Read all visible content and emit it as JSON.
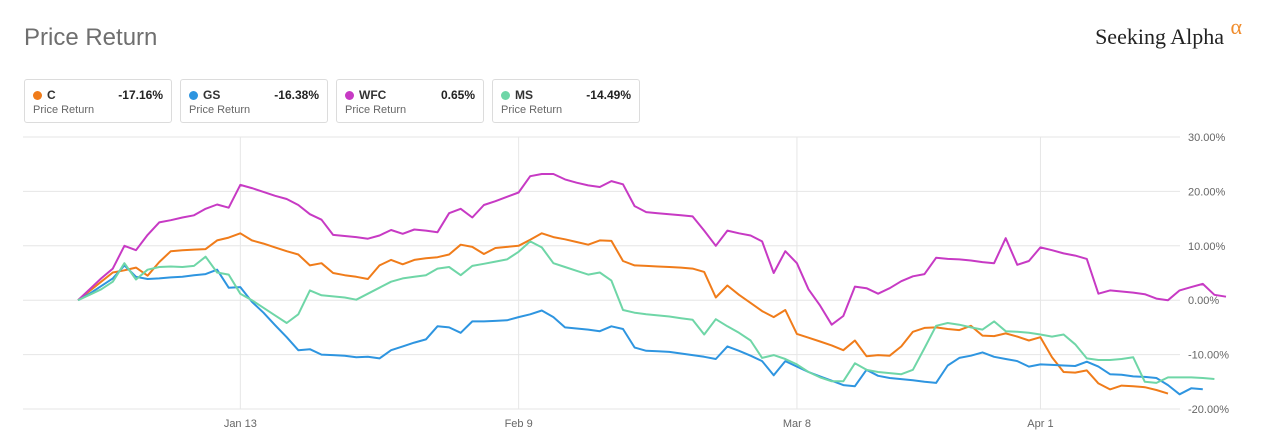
{
  "header": {
    "title": "Price Return",
    "brand": "Seeking Alpha",
    "brand_mark": "α"
  },
  "legend": [
    {
      "ticker": "C",
      "value": "-17.16%",
      "metric": "Price Return",
      "color": "#f07c1a"
    },
    {
      "ticker": "GS",
      "value": "-16.38%",
      "metric": "Price Return",
      "color": "#2e95e0"
    },
    {
      "ticker": "WFC",
      "value": "0.65%",
      "metric": "Price Return",
      "color": "#c73ac4"
    },
    {
      "ticker": "MS",
      "value": "-14.49%",
      "metric": "Price Return",
      "color": "#6fd6a7"
    }
  ],
  "chart_data": {
    "type": "line",
    "title": "Price Return",
    "x_ticks": [
      "Jan 13",
      "Feb 9",
      "Mar 8",
      "Apr 1"
    ],
    "x_tick_index": [
      14,
      38,
      62,
      83
    ],
    "y_ticks": [
      "30.00%",
      "20.00%",
      "10.00%",
      "0.00%",
      "-10.00%",
      "-20.00%"
    ],
    "y_tick_values": [
      30,
      20,
      10,
      0,
      -10,
      -20
    ],
    "ylim": [
      -20,
      30
    ],
    "grid": true,
    "series": [
      {
        "name": "C",
        "color": "#f07c1a",
        "values": [
          0,
          1.7,
          3.4,
          5.1,
          5.5,
          6.0,
          4.5,
          7.0,
          9.0,
          9.2,
          9.3,
          9.4,
          11.0,
          11.5,
          12.3,
          11.0,
          10.4,
          9.7,
          9.0,
          8.4,
          6.4,
          6.8,
          5.0,
          4.6,
          4.3,
          3.9,
          6.4,
          7.4,
          6.6,
          7.4,
          7.7,
          7.9,
          8.4,
          10.2,
          9.8,
          8.5,
          9.6,
          9.8,
          10.0,
          11.1,
          12.3,
          11.6,
          11.2,
          10.7,
          10.2,
          11.0,
          10.9,
          7.2,
          6.4,
          6.3,
          6.2,
          6.1,
          6.0,
          5.8,
          5.2,
          0.5,
          2.7,
          1.0,
          -0.5,
          -2.0,
          -3.1,
          -1.8,
          -6.2,
          -6.9,
          -7.6,
          -8.3,
          -9.2,
          -7.4,
          -10.3,
          -10.1,
          -10.2,
          -8.5,
          -5.8,
          -5.1,
          -5.0,
          -5.3,
          -5.5,
          -4.7,
          -6.5,
          -6.6,
          -6.1,
          -6.7,
          -7.4,
          -6.8,
          -10.5,
          -13.2,
          -13.3,
          -12.9,
          -15.3,
          -16.4,
          -15.7,
          -15.8,
          -16.0,
          -16.5,
          -17.16
        ]
      },
      {
        "name": "GS",
        "color": "#2e95e0",
        "values": [
          0,
          1.2,
          2.6,
          4.0,
          6.4,
          4.3,
          3.9,
          4.0,
          4.2,
          4.3,
          4.6,
          4.8,
          5.6,
          2.3,
          2.4,
          -0.3,
          -2.3,
          -4.6,
          -6.8,
          -9.2,
          -9.0,
          -10.0,
          -10.1,
          -10.2,
          -10.5,
          -10.4,
          -10.7,
          -9.2,
          -8.5,
          -7.8,
          -7.2,
          -4.8,
          -5.0,
          -6.0,
          -3.9,
          -3.9,
          -3.8,
          -3.7,
          -3.1,
          -2.6,
          -1.9,
          -3.1,
          -5.0,
          -5.2,
          -5.4,
          -5.7,
          -4.8,
          -5.3,
          -8.7,
          -9.3,
          -9.4,
          -9.5,
          -9.8,
          -10.1,
          -10.4,
          -10.8,
          -8.5,
          -9.3,
          -10.2,
          -11.2,
          -13.8,
          -11.2,
          -12.2,
          -13.2,
          -14.0,
          -14.8,
          -15.6,
          -15.8,
          -12.8,
          -13.9,
          -14.3,
          -14.5,
          -14.7,
          -15.0,
          -15.2,
          -12.0,
          -10.6,
          -10.2,
          -9.6,
          -10.4,
          -10.8,
          -11.2,
          -12.2,
          -11.8,
          -11.9,
          -12.0,
          -12.1,
          -11.3,
          -12.2,
          -13.6,
          -13.7,
          -14.0,
          -14.1,
          -14.3,
          -15.6,
          -17.3,
          -16.2,
          -16.38
        ]
      },
      {
        "name": "WFC",
        "color": "#c73ac4",
        "values": [
          0,
          2.0,
          4.0,
          5.8,
          10.0,
          9.2,
          12.0,
          14.3,
          14.7,
          15.2,
          15.6,
          16.8,
          17.6,
          17.0,
          21.2,
          20.6,
          19.9,
          19.2,
          18.6,
          17.5,
          15.8,
          14.8,
          12.0,
          11.8,
          11.6,
          11.3,
          11.9,
          12.9,
          12.2,
          13.0,
          12.8,
          12.5,
          16.0,
          16.8,
          15.2,
          17.5,
          18.2,
          19.0,
          19.8,
          22.8,
          23.2,
          23.2,
          22.2,
          21.6,
          21.1,
          20.8,
          21.9,
          21.3,
          17.3,
          16.2,
          16.0,
          15.8,
          15.6,
          15.4,
          12.8,
          10.0,
          12.8,
          12.3,
          11.9,
          10.8,
          5.0,
          9.0,
          6.8,
          2.0,
          -1.0,
          -4.5,
          -2.9,
          2.5,
          2.2,
          1.2,
          2.2,
          3.5,
          4.4,
          4.8,
          7.8,
          7.6,
          7.5,
          7.3,
          7.0,
          6.8,
          11.4,
          6.5,
          7.2,
          9.7,
          9.2,
          8.6,
          8.2,
          7.6,
          1.2,
          1.8,
          1.6,
          1.4,
          1.1,
          0.3,
          0.0,
          1.8,
          2.4,
          3.0,
          1.0,
          0.65
        ]
      },
      {
        "name": "MS",
        "color": "#6fd6a7",
        "values": [
          0,
          1.0,
          2.0,
          3.4,
          6.8,
          3.8,
          5.6,
          6.1,
          6.2,
          6.1,
          6.3,
          8.0,
          5.1,
          4.7,
          1.2,
          0.0,
          -1.4,
          -2.8,
          -4.2,
          -2.6,
          1.8,
          0.9,
          0.7,
          0.5,
          0.1,
          1.2,
          2.3,
          3.4,
          4.0,
          4.3,
          4.6,
          5.8,
          6.1,
          4.6,
          6.3,
          6.7,
          7.1,
          7.5,
          8.9,
          10.8,
          9.7,
          6.8,
          6.1,
          5.4,
          4.7,
          5.1,
          3.6,
          -1.8,
          -2.3,
          -2.6,
          -2.8,
          -3.0,
          -3.3,
          -3.6,
          -6.3,
          -3.5,
          -4.8,
          -6.0,
          -7.4,
          -10.6,
          -10.1,
          -10.8,
          -11.8,
          -13.2,
          -14.2,
          -14.9,
          -14.9,
          -11.6,
          -12.8,
          -13.2,
          -13.4,
          -13.6,
          -12.8,
          -8.8,
          -4.7,
          -4.2,
          -4.5,
          -5.0,
          -5.4,
          -3.9,
          -5.7,
          -5.8,
          -6.0,
          -6.3,
          -6.7,
          -6.3,
          -8.1,
          -10.7,
          -11.0,
          -11.0,
          -10.8,
          -10.5,
          -15.0,
          -15.2,
          -14.2,
          -14.2,
          -14.2,
          -14.3,
          -14.49
        ]
      }
    ]
  }
}
